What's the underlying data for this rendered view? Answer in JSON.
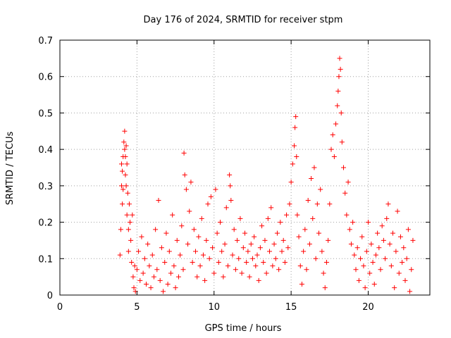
{
  "chart_data": {
    "type": "scatter",
    "title": "Day 176 of 2024, SRMTID for receiver stpm",
    "xlabel": "GPS time / hours",
    "ylabel": "SRMTID / TECUs",
    "xlim": [
      0,
      24
    ],
    "ylim": [
      0,
      0.7
    ],
    "xticks": [
      0,
      5,
      10,
      15,
      20
    ],
    "yticks": [
      0,
      0.1,
      0.2,
      0.3,
      0.4,
      0.5,
      0.6,
      0.7
    ],
    "grid": true,
    "marker": "+",
    "series": [
      {
        "name": "stpm",
        "color": "#ff0000",
        "points": [
          [
            3.9,
            0.11
          ],
          [
            3.95,
            0.18
          ],
          [
            4.0,
            0.3
          ],
          [
            4.0,
            0.36
          ],
          [
            4.05,
            0.25
          ],
          [
            4.05,
            0.34
          ],
          [
            4.1,
            0.38
          ],
          [
            4.1,
            0.29
          ],
          [
            4.15,
            0.42
          ],
          [
            4.2,
            0.45
          ],
          [
            4.2,
            0.4
          ],
          [
            4.25,
            0.38
          ],
          [
            4.25,
            0.33
          ],
          [
            4.3,
            0.41
          ],
          [
            4.3,
            0.3
          ],
          [
            4.35,
            0.22
          ],
          [
            4.35,
            0.36
          ],
          [
            4.4,
            0.28
          ],
          [
            4.45,
            0.18
          ],
          [
            4.45,
            0.12
          ],
          [
            4.5,
            0.25
          ],
          [
            4.55,
            0.2
          ],
          [
            4.6,
            0.15
          ],
          [
            4.65,
            0.09
          ],
          [
            4.7,
            0.22
          ],
          [
            4.75,
            0.05
          ],
          [
            4.8,
            0.02
          ],
          [
            4.85,
            0.08
          ],
          [
            4.9,
            0.01
          ],
          [
            5.0,
            0.07
          ],
          [
            5.1,
            0.12
          ],
          [
            5.2,
            0.04
          ],
          [
            5.3,
            0.16
          ],
          [
            5.4,
            0.06
          ],
          [
            5.5,
            0.1
          ],
          [
            5.6,
            0.03
          ],
          [
            5.7,
            0.14
          ],
          [
            5.8,
            0.08
          ],
          [
            5.9,
            0.02
          ],
          [
            6.0,
            0.11
          ],
          [
            6.1,
            0.05
          ],
          [
            6.2,
            0.18
          ],
          [
            6.3,
            0.07
          ],
          [
            6.4,
            0.26
          ],
          [
            6.5,
            0.04
          ],
          [
            6.6,
            0.13
          ],
          [
            6.7,
            0.01
          ],
          [
            6.8,
            0.09
          ],
          [
            6.9,
            0.17
          ],
          [
            7.0,
            0.03
          ],
          [
            7.1,
            0.12
          ],
          [
            7.2,
            0.06
          ],
          [
            7.3,
            0.22
          ],
          [
            7.4,
            0.08
          ],
          [
            7.5,
            0.02
          ],
          [
            7.6,
            0.15
          ],
          [
            7.7,
            0.05
          ],
          [
            7.8,
            0.11
          ],
          [
            7.9,
            0.19
          ],
          [
            8.0,
            0.07
          ],
          [
            8.05,
            0.39
          ],
          [
            8.1,
            0.33
          ],
          [
            8.2,
            0.29
          ],
          [
            8.3,
            0.14
          ],
          [
            8.4,
            0.23
          ],
          [
            8.5,
            0.31
          ],
          [
            8.6,
            0.09
          ],
          [
            8.7,
            0.18
          ],
          [
            8.8,
            0.12
          ],
          [
            8.9,
            0.05
          ],
          [
            9.0,
            0.16
          ],
          [
            9.1,
            0.08
          ],
          [
            9.2,
            0.21
          ],
          [
            9.3,
            0.11
          ],
          [
            9.4,
            0.04
          ],
          [
            9.5,
            0.15
          ],
          [
            9.6,
            0.25
          ],
          [
            9.7,
            0.1
          ],
          [
            9.8,
            0.27
          ],
          [
            9.9,
            0.13
          ],
          [
            10.0,
            0.06
          ],
          [
            10.1,
            0.29
          ],
          [
            10.2,
            0.17
          ],
          [
            10.3,
            0.09
          ],
          [
            10.4,
            0.2
          ],
          [
            10.5,
            0.12
          ],
          [
            10.6,
            0.05
          ],
          [
            10.7,
            0.14
          ],
          [
            10.8,
            0.24
          ],
          [
            10.9,
            0.08
          ],
          [
            11.0,
            0.33
          ],
          [
            11.05,
            0.3
          ],
          [
            11.1,
            0.26
          ],
          [
            11.2,
            0.11
          ],
          [
            11.3,
            0.18
          ],
          [
            11.4,
            0.07
          ],
          [
            11.5,
            0.15
          ],
          [
            11.6,
            0.1
          ],
          [
            11.7,
            0.21
          ],
          [
            11.8,
            0.06
          ],
          [
            11.9,
            0.13
          ],
          [
            12.0,
            0.17
          ],
          [
            12.1,
            0.09
          ],
          [
            12.2,
            0.12
          ],
          [
            12.3,
            0.05
          ],
          [
            12.4,
            0.14
          ],
          [
            12.5,
            0.1
          ],
          [
            12.6,
            0.16
          ],
          [
            12.7,
            0.08
          ],
          [
            12.8,
            0.11
          ],
          [
            12.9,
            0.04
          ],
          [
            13.0,
            0.13
          ],
          [
            13.1,
            0.19
          ],
          [
            13.2,
            0.09
          ],
          [
            13.3,
            0.15
          ],
          [
            13.4,
            0.06
          ],
          [
            13.5,
            0.21
          ],
          [
            13.6,
            0.12
          ],
          [
            13.7,
            0.24
          ],
          [
            13.8,
            0.08
          ],
          [
            13.9,
            0.14
          ],
          [
            14.0,
            0.1
          ],
          [
            14.1,
            0.17
          ],
          [
            14.2,
            0.07
          ],
          [
            14.3,
            0.2
          ],
          [
            14.4,
            0.12
          ],
          [
            14.5,
            0.15
          ],
          [
            14.6,
            0.09
          ],
          [
            14.7,
            0.22
          ],
          [
            14.8,
            0.13
          ],
          [
            14.9,
            0.25
          ],
          [
            15.0,
            0.31
          ],
          [
            15.1,
            0.36
          ],
          [
            15.2,
            0.41
          ],
          [
            15.25,
            0.46
          ],
          [
            15.3,
            0.49
          ],
          [
            15.35,
            0.38
          ],
          [
            15.4,
            0.22
          ],
          [
            15.5,
            0.16
          ],
          [
            15.6,
            0.08
          ],
          [
            15.7,
            0.03
          ],
          [
            15.8,
            0.12
          ],
          [
            15.9,
            0.18
          ],
          [
            16.0,
            0.07
          ],
          [
            16.1,
            0.26
          ],
          [
            16.2,
            0.14
          ],
          [
            16.3,
            0.32
          ],
          [
            16.4,
            0.21
          ],
          [
            16.5,
            0.35
          ],
          [
            16.6,
            0.1
          ],
          [
            16.7,
            0.25
          ],
          [
            16.8,
            0.17
          ],
          [
            16.9,
            0.29
          ],
          [
            17.0,
            0.12
          ],
          [
            17.1,
            0.06
          ],
          [
            17.2,
            0.02
          ],
          [
            17.3,
            0.09
          ],
          [
            17.4,
            0.15
          ],
          [
            17.5,
            0.25
          ],
          [
            17.6,
            0.4
          ],
          [
            17.7,
            0.44
          ],
          [
            17.8,
            0.38
          ],
          [
            17.9,
            0.47
          ],
          [
            18.0,
            0.52
          ],
          [
            18.05,
            0.56
          ],
          [
            18.1,
            0.6
          ],
          [
            18.15,
            0.65
          ],
          [
            18.2,
            0.62
          ],
          [
            18.25,
            0.5
          ],
          [
            18.3,
            0.42
          ],
          [
            18.4,
            0.35
          ],
          [
            18.5,
            0.28
          ],
          [
            18.6,
            0.22
          ],
          [
            18.7,
            0.31
          ],
          [
            18.8,
            0.18
          ],
          [
            18.9,
            0.14
          ],
          [
            19.0,
            0.2
          ],
          [
            19.1,
            0.11
          ],
          [
            19.2,
            0.07
          ],
          [
            19.3,
            0.13
          ],
          [
            19.4,
            0.04
          ],
          [
            19.5,
            0.1
          ],
          [
            19.6,
            0.16
          ],
          [
            19.7,
            0.08
          ],
          [
            19.8,
            0.02
          ],
          [
            19.9,
            0.12
          ],
          [
            20.0,
            0.2
          ],
          [
            20.1,
            0.06
          ],
          [
            20.2,
            0.14
          ],
          [
            20.3,
            0.09
          ],
          [
            20.4,
            0.03
          ],
          [
            20.5,
            0.11
          ],
          [
            20.6,
            0.17
          ],
          [
            20.7,
            0.13
          ],
          [
            20.8,
            0.07
          ],
          [
            20.9,
            0.19
          ],
          [
            21.0,
            0.15
          ],
          [
            21.1,
            0.1
          ],
          [
            21.2,
            0.21
          ],
          [
            21.3,
            0.25
          ],
          [
            21.4,
            0.14
          ],
          [
            21.5,
            0.08
          ],
          [
            21.6,
            0.17
          ],
          [
            21.7,
            0.02
          ],
          [
            21.8,
            0.12
          ],
          [
            21.9,
            0.23
          ],
          [
            22.0,
            0.06
          ],
          [
            22.1,
            0.16
          ],
          [
            22.2,
            0.09
          ],
          [
            22.3,
            0.13
          ],
          [
            22.4,
            0.04
          ],
          [
            22.5,
            0.1
          ],
          [
            22.6,
            0.18
          ],
          [
            22.7,
            0.01
          ],
          [
            22.8,
            0.07
          ],
          [
            22.9,
            0.15
          ]
        ]
      }
    ]
  }
}
